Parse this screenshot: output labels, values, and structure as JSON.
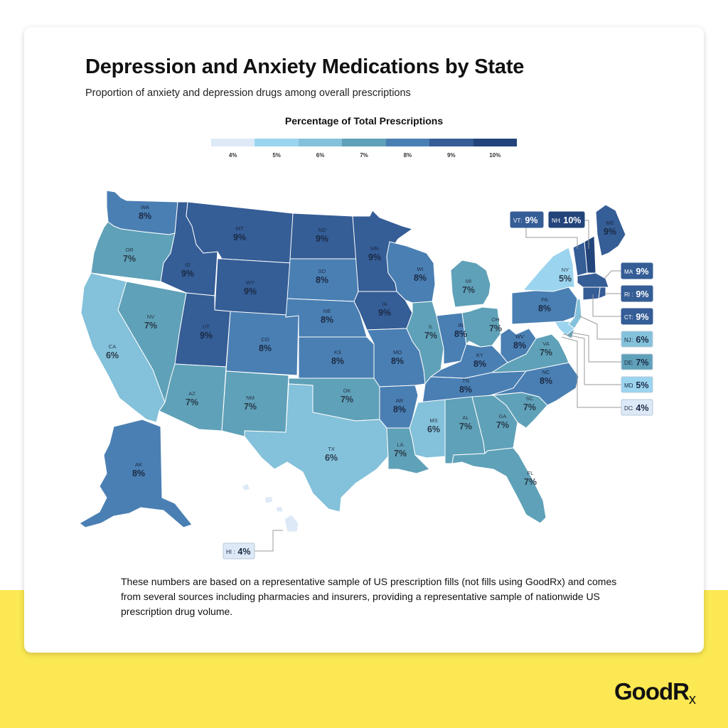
{
  "title": "Depression and Anxiety Medications by State",
  "subtitle": "Proportion of anxiety and depression drugs among overall prescriptions",
  "legend": {
    "title": "Percentage of Total Prescriptions",
    "items": [
      {
        "label": "4%",
        "value": 4,
        "color": "#dde9f7"
      },
      {
        "label": "5%",
        "value": 5,
        "color": "#9bd4ee"
      },
      {
        "label": "6%",
        "value": 6,
        "color": "#84c1da"
      },
      {
        "label": "7%",
        "value": 7,
        "color": "#5fa1b8"
      },
      {
        "label": "8%",
        "value": 8,
        "color": "#4a7fb3"
      },
      {
        "label": "9%",
        "value": 9,
        "color": "#355d96"
      },
      {
        "label": "10%",
        "value": 10,
        "color": "#22447a"
      }
    ]
  },
  "states": [
    {
      "abbr": "WA",
      "label": "8%",
      "value": 8
    },
    {
      "abbr": "OR",
      "label": "7%",
      "value": 7
    },
    {
      "abbr": "CA",
      "label": "6%",
      "value": 6
    },
    {
      "abbr": "NV",
      "label": "7%",
      "value": 7
    },
    {
      "abbr": "ID",
      "label": "9%",
      "value": 9
    },
    {
      "abbr": "MT",
      "label": "9%",
      "value": 9
    },
    {
      "abbr": "WY",
      "label": "9%",
      "value": 9
    },
    {
      "abbr": "UT",
      "label": "9%",
      "value": 9
    },
    {
      "abbr": "AZ",
      "label": "7%",
      "value": 7
    },
    {
      "abbr": "CO",
      "label": "8%",
      "value": 8
    },
    {
      "abbr": "NM",
      "label": "7%",
      "value": 7
    },
    {
      "abbr": "ND",
      "label": "9%",
      "value": 9
    },
    {
      "abbr": "SD",
      "label": "8%",
      "value": 8
    },
    {
      "abbr": "NE",
      "label": "8%",
      "value": 8
    },
    {
      "abbr": "KS",
      "label": "8%",
      "value": 8
    },
    {
      "abbr": "OK",
      "label": "7%",
      "value": 7
    },
    {
      "abbr": "TX",
      "label": "6%",
      "value": 6
    },
    {
      "abbr": "MN",
      "label": "9%",
      "value": 9
    },
    {
      "abbr": "IA",
      "label": "9%",
      "value": 9
    },
    {
      "abbr": "MO",
      "label": "8%",
      "value": 8
    },
    {
      "abbr": "AR",
      "label": "8%",
      "value": 8
    },
    {
      "abbr": "LA",
      "label": "7%",
      "value": 7
    },
    {
      "abbr": "WI",
      "label": "8%",
      "value": 8
    },
    {
      "abbr": "IL",
      "label": "7%",
      "value": 7
    },
    {
      "abbr": "MI",
      "label": "7%",
      "value": 7
    },
    {
      "abbr": "IN",
      "label": "8%",
      "value": 8
    },
    {
      "abbr": "OH",
      "label": "7%",
      "value": 7
    },
    {
      "abbr": "KY",
      "label": "8%",
      "value": 8
    },
    {
      "abbr": "TN",
      "label": "8%",
      "value": 8
    },
    {
      "abbr": "MS",
      "label": "6%",
      "value": 6
    },
    {
      "abbr": "AL",
      "label": "7%",
      "value": 7
    },
    {
      "abbr": "GA",
      "label": "7%",
      "value": 7
    },
    {
      "abbr": "FL",
      "label": "7%",
      "value": 7
    },
    {
      "abbr": "SC",
      "label": "7%",
      "value": 7
    },
    {
      "abbr": "NC",
      "label": "8%",
      "value": 8
    },
    {
      "abbr": "VA",
      "label": "7%",
      "value": 7
    },
    {
      "abbr": "WV",
      "label": "8%",
      "value": 8
    },
    {
      "abbr": "PA",
      "label": "8%",
      "value": 8
    },
    {
      "abbr": "NY",
      "label": "5%",
      "value": 5
    },
    {
      "abbr": "ME",
      "label": "9%",
      "value": 9
    },
    {
      "abbr": "AK",
      "label": "8%",
      "value": 8
    },
    {
      "abbr": "TX_",
      "label": "",
      "value": 0
    }
  ],
  "callouts": [
    {
      "abbr": "VT",
      "label": "9%",
      "value": 9
    },
    {
      "abbr": "NH",
      "label": "10%",
      "value": 10
    },
    {
      "abbr": "MA",
      "label": "9%",
      "value": 9
    },
    {
      "abbr": "RI",
      "label": "9%",
      "value": 9
    },
    {
      "abbr": "CT",
      "label": "9%",
      "value": 9
    },
    {
      "abbr": "NJ",
      "label": "6%",
      "value": 6
    },
    {
      "abbr": "DE",
      "label": "7%",
      "value": 7
    },
    {
      "abbr": "MD",
      "label": "5%",
      "value": 5
    },
    {
      "abbr": "DC",
      "label": "4%",
      "value": 4
    },
    {
      "abbr": "HI",
      "label": "4%",
      "value": 4
    }
  ],
  "footnote": "These numbers are based on a representative sample of US prescription fills (not fills using GoodRx) and comes from several sources including pharmacies and insurers, providing a representative sample of nationwide US prescription drug volume.",
  "logo": {
    "main": "GoodR",
    "sub": "x"
  }
}
